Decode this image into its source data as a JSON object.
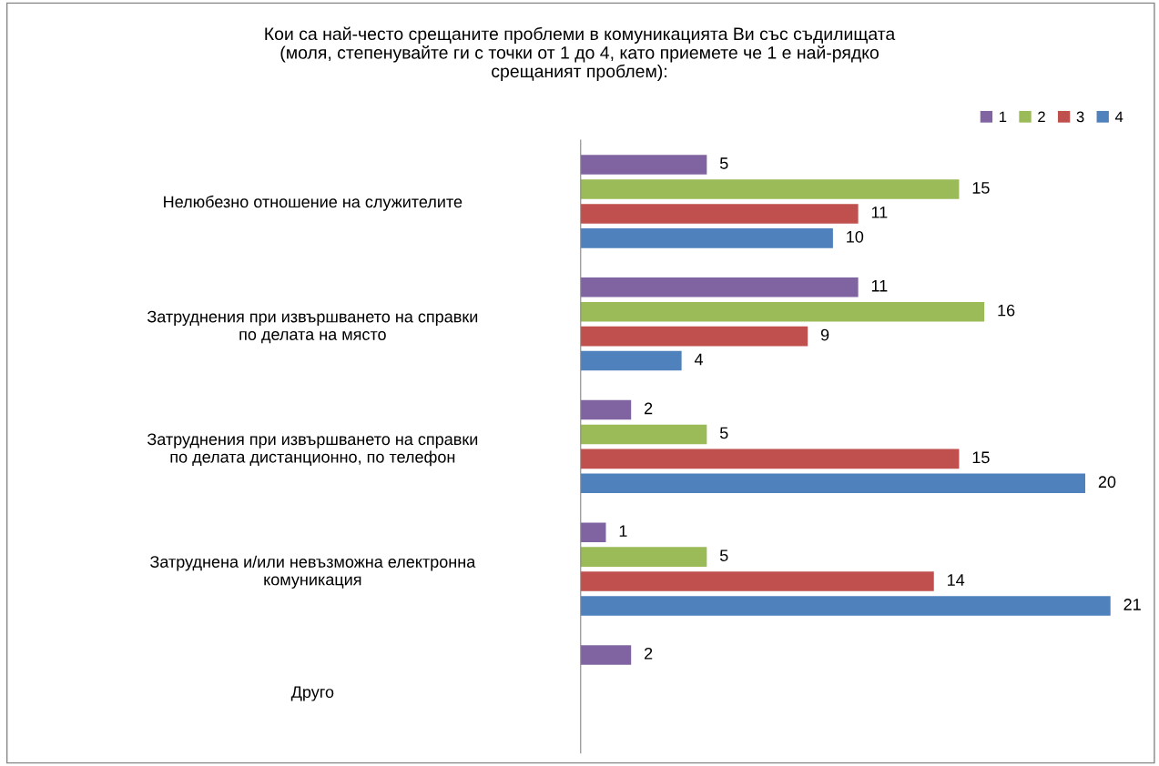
{
  "chart_data": {
    "type": "bar",
    "orientation": "horizontal",
    "title": "Кои са най-често срещаните проблеми в комуникацията Ви със съдилищата\n(моля, степенувайте ги с точки от 1 до 4, като приемете че 1 е най-рядко\nсрещаният проблем):",
    "categories": [
      "Нелюбезно отношение на служителите",
      "Затруднения при извършването на справки\nпо делата на място",
      "Затруднения при извършването на справки\nпо делата дистанционно, по телефон",
      "Затруднена и/или невъзможна електронна\nкомуникация",
      "Друго"
    ],
    "series": [
      {
        "name": "1",
        "color": "#8064a2",
        "values": [
          5,
          11,
          2,
          1,
          2
        ]
      },
      {
        "name": "2",
        "color": "#9bbb59",
        "values": [
          15,
          16,
          5,
          5,
          null
        ]
      },
      {
        "name": "3",
        "color": "#c0504d",
        "values": [
          11,
          9,
          15,
          14,
          null
        ]
      },
      {
        "name": "4",
        "color": "#4f81bd",
        "values": [
          10,
          4,
          20,
          21,
          null
        ]
      }
    ],
    "tick_labels": "y",
    "data_labels": true,
    "grid": false,
    "legend": "top right"
  }
}
